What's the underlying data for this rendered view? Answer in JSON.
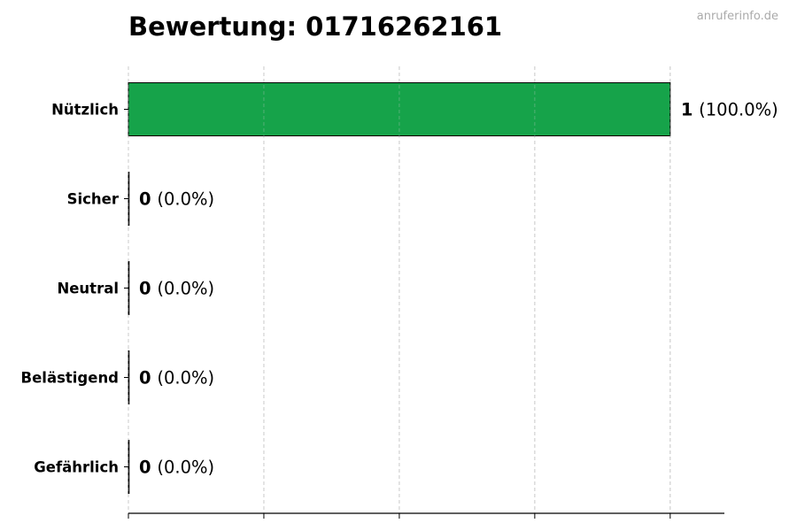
{
  "chart_data": {
    "type": "bar",
    "orientation": "horizontal",
    "title": "Bewertung: 01716262161",
    "watermark": "anruferinfo.de",
    "categories": [
      "Nützlich",
      "Sicher",
      "Neutral",
      "Belästigend",
      "Gefährlich"
    ],
    "values": [
      1,
      0,
      0,
      0,
      0
    ],
    "percent_labels": [
      "(100.0%)",
      "(0.0%)",
      "(0.0%)",
      "(0.0%)",
      "(0.0%)"
    ],
    "xlim": [
      0,
      1.1
    ],
    "xticks": [
      0,
      0.25,
      0.5,
      0.75,
      1.0
    ],
    "xtick_labels_shown": false,
    "grid": "vertical dashed",
    "bar_color": "#16a34a",
    "xlabel": "",
    "ylabel": ""
  }
}
